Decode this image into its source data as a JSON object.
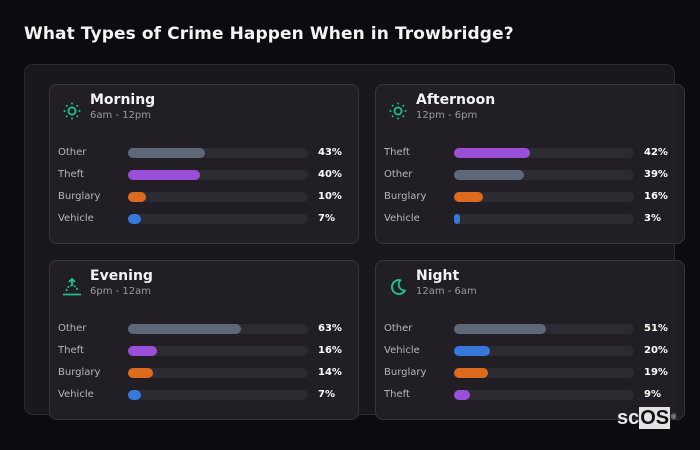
{
  "title": "What Types of Crime Happen When in Trowbridge?",
  "colors": {
    "Other": "#5f6878",
    "Theft": "#9a4fd9",
    "Burglary": "#de6a1d",
    "Vehicle": "#3778db",
    "icon_accent": "#1fbf8f"
  },
  "logo": {
    "sc": "sc",
    "os": "OS",
    "reg": "®"
  },
  "chart_data": {
    "type": "bar",
    "title": "What Types of Crime Happen When in Trowbridge?",
    "orientation": "horizontal",
    "xlim": [
      0,
      100
    ],
    "unit": "%",
    "panels": [
      {
        "name": "Morning",
        "range": "6am - 12pm",
        "icon": "sun-icon",
        "categories": [
          "Other",
          "Theft",
          "Burglary",
          "Vehicle"
        ],
        "values": [
          43,
          40,
          10,
          7
        ]
      },
      {
        "name": "Afternoon",
        "range": "12pm - 6pm",
        "icon": "sun-icon",
        "categories": [
          "Theft",
          "Other",
          "Burglary",
          "Vehicle"
        ],
        "values": [
          42,
          39,
          16,
          3
        ]
      },
      {
        "name": "Evening",
        "range": "6pm - 12am",
        "icon": "sunset-icon",
        "categories": [
          "Other",
          "Theft",
          "Burglary",
          "Vehicle"
        ],
        "values": [
          63,
          16,
          14,
          7
        ]
      },
      {
        "name": "Night",
        "range": "12am - 6am",
        "icon": "moon-icon",
        "categories": [
          "Other",
          "Vehicle",
          "Burglary",
          "Theft"
        ],
        "values": [
          51,
          20,
          19,
          9
        ]
      }
    ]
  }
}
